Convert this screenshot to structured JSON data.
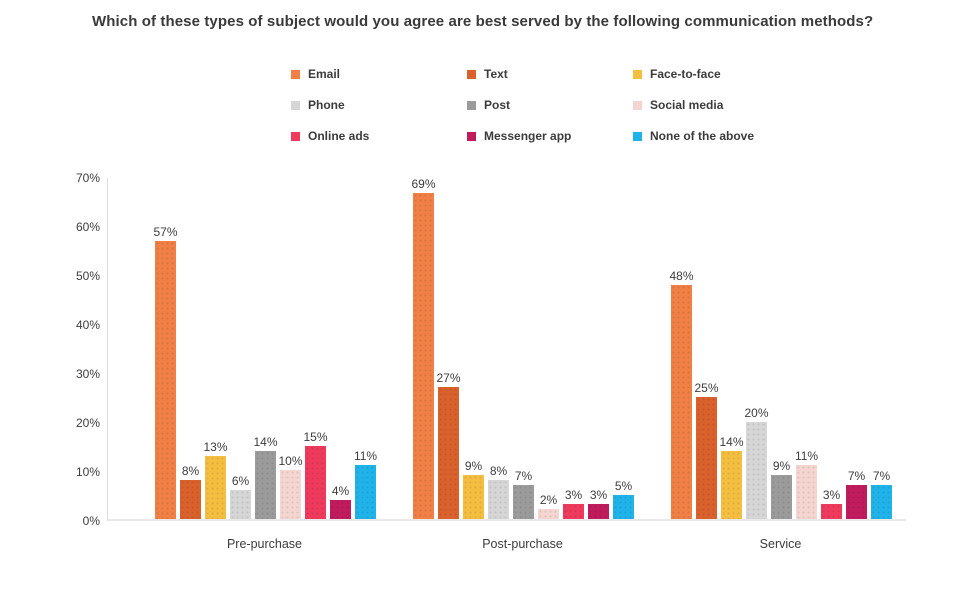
{
  "title": "Which of these types of subject would you agree are best served by the following communication methods?",
  "chart_data": {
    "type": "bar",
    "title": "Which of these types of subject would you agree are best served by the following communication methods?",
    "categories": [
      "Pre-purchase",
      "Post-purchase",
      "Service"
    ],
    "series": [
      {
        "name": "Email",
        "color": "#F08045",
        "values": [
          57,
          69,
          48
        ]
      },
      {
        "name": "Text",
        "color": "#D9612C",
        "values": [
          8,
          27,
          25
        ]
      },
      {
        "name": "Face-to-face",
        "color": "#F4BE41",
        "values": [
          13,
          9,
          14
        ]
      },
      {
        "name": "Phone",
        "color": "#D6D6D6",
        "values": [
          6,
          8,
          20
        ]
      },
      {
        "name": "Post",
        "color": "#9B9B9B",
        "values": [
          14,
          7,
          9
        ]
      },
      {
        "name": "Social media",
        "color": "#F4D5D0",
        "values": [
          10,
          2,
          11
        ]
      },
      {
        "name": "Online ads",
        "color": "#EF3A5D",
        "values": [
          15,
          3,
          3
        ]
      },
      {
        "name": "Messenger app",
        "color": "#C01C5D",
        "values": [
          4,
          3,
          7
        ]
      },
      {
        "name": "None of the above",
        "color": "#1FB3EA",
        "values": [
          11,
          5,
          7
        ]
      }
    ],
    "xlabel": "",
    "ylabel": "",
    "ylim": [
      0,
      70
    ],
    "yticks": [
      "0%",
      "10%",
      "20%",
      "30%",
      "40%",
      "50%",
      "60%",
      "70%"
    ],
    "value_suffix": "%",
    "value_labels": true,
    "grid": false,
    "legend_position": "top"
  }
}
